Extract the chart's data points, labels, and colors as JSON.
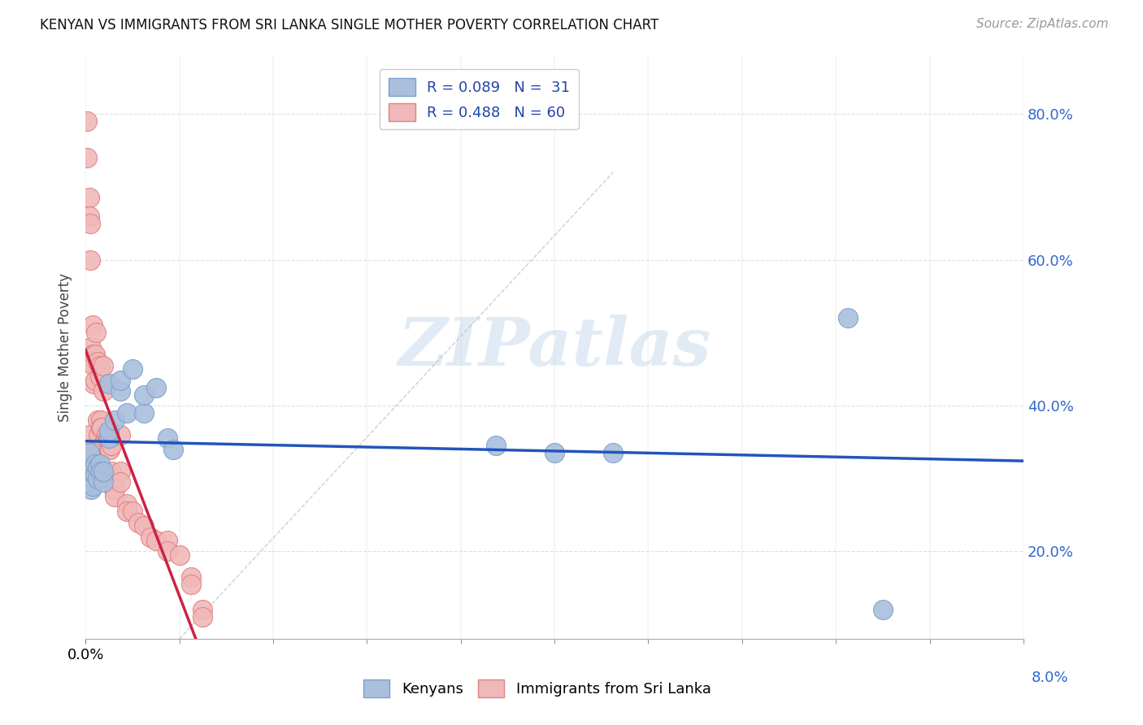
{
  "title": "KENYAN VS IMMIGRANTS FROM SRI LANKA SINGLE MOTHER POVERTY CORRELATION CHART",
  "source": "Source: ZipAtlas.com",
  "ylabel": "Single Mother Poverty",
  "yaxis_ticks": [
    0.2,
    0.4,
    0.6,
    0.8
  ],
  "yaxis_labels": [
    "20.0%",
    "40.0%",
    "60.0%",
    "80.0%"
  ],
  "xlim": [
    0.0,
    0.08
  ],
  "ylim": [
    0.08,
    0.88
  ],
  "legend_blue_label": "R = 0.089   N =  31",
  "legend_pink_label": "R = 0.488   N = 60",
  "blue_dot_color": "#aabfdd",
  "blue_edge_color": "#7aa0cc",
  "pink_dot_color": "#f0b8b8",
  "pink_edge_color": "#e08080",
  "trend_blue": "#2255bb",
  "trend_pink": "#cc2244",
  "watermark": "ZIPatlas",
  "watermark_color": "#c5d8ee",
  "kenyan_x": [
    0.0003,
    0.0003,
    0.0004,
    0.0005,
    0.0006,
    0.0008,
    0.0008,
    0.001,
    0.001,
    0.0012,
    0.0013,
    0.0015,
    0.0015,
    0.002,
    0.002,
    0.002,
    0.0025,
    0.003,
    0.003,
    0.0035,
    0.004,
    0.005,
    0.005,
    0.006,
    0.007,
    0.0075,
    0.035,
    0.04,
    0.045,
    0.065,
    0.068
  ],
  "kenyan_y": [
    0.335,
    0.3,
    0.295,
    0.285,
    0.29,
    0.305,
    0.32,
    0.3,
    0.315,
    0.32,
    0.31,
    0.295,
    0.31,
    0.355,
    0.365,
    0.43,
    0.38,
    0.42,
    0.435,
    0.39,
    0.45,
    0.39,
    0.415,
    0.425,
    0.355,
    0.34,
    0.345,
    0.335,
    0.335,
    0.52,
    0.12
  ],
  "srilanka_x": [
    0.0001,
    0.0001,
    0.0002,
    0.0002,
    0.0003,
    0.0003,
    0.0003,
    0.0004,
    0.0004,
    0.0005,
    0.0005,
    0.0005,
    0.0006,
    0.0006,
    0.0007,
    0.0007,
    0.0008,
    0.0008,
    0.0009,
    0.001,
    0.001,
    0.0011,
    0.0012,
    0.0012,
    0.0013,
    0.0013,
    0.0014,
    0.0015,
    0.0015,
    0.0016,
    0.0017,
    0.0018,
    0.0019,
    0.002,
    0.002,
    0.0021,
    0.0021,
    0.0022,
    0.0022,
    0.0023,
    0.0024,
    0.0025,
    0.0025,
    0.003,
    0.003,
    0.003,
    0.0035,
    0.0035,
    0.004,
    0.0045,
    0.005,
    0.0055,
    0.006,
    0.007,
    0.007,
    0.008,
    0.009,
    0.009,
    0.01,
    0.01
  ],
  "srilanka_y": [
    0.79,
    0.74,
    0.33,
    0.31,
    0.685,
    0.66,
    0.36,
    0.65,
    0.6,
    0.48,
    0.46,
    0.34,
    0.51,
    0.47,
    0.455,
    0.43,
    0.47,
    0.435,
    0.5,
    0.46,
    0.38,
    0.36,
    0.455,
    0.44,
    0.38,
    0.37,
    0.37,
    0.455,
    0.42,
    0.35,
    0.355,
    0.36,
    0.355,
    0.36,
    0.34,
    0.355,
    0.34,
    0.31,
    0.345,
    0.3,
    0.285,
    0.285,
    0.275,
    0.36,
    0.31,
    0.295,
    0.265,
    0.255,
    0.255,
    0.24,
    0.235,
    0.22,
    0.215,
    0.215,
    0.2,
    0.195,
    0.165,
    0.155,
    0.12,
    0.11
  ]
}
